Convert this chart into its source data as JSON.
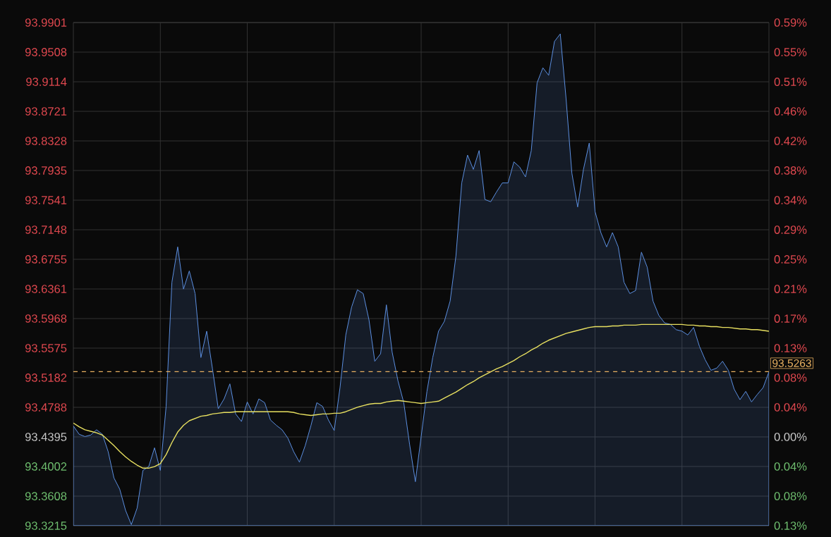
{
  "chart_data": {
    "type": "area",
    "categories": [
      null,
      null,
      null,
      null,
      null,
      null,
      null,
      null,
      null,
      null,
      null,
      null,
      null,
      null,
      null,
      null,
      null,
      null,
      null,
      null,
      null,
      null,
      null,
      null,
      null,
      null,
      null,
      null,
      null,
      null,
      null,
      null,
      null,
      null,
      null,
      null,
      null,
      null,
      null,
      null,
      null,
      null,
      null,
      null,
      null,
      null,
      null,
      null,
      null,
      null,
      null,
      null,
      null,
      null,
      null,
      null,
      null,
      null,
      null,
      null,
      null,
      null,
      null,
      null,
      null,
      null,
      null,
      null,
      null,
      null,
      null,
      null,
      null,
      null,
      null,
      null,
      null,
      null,
      null,
      null,
      null,
      null,
      null,
      null,
      null,
      null,
      null,
      null,
      null,
      null,
      null,
      null,
      null,
      null,
      null,
      null,
      null,
      null,
      null,
      null,
      null,
      null,
      null,
      null,
      null,
      null,
      null,
      null,
      null,
      null,
      null,
      null,
      null,
      null,
      null,
      null,
      null,
      null,
      null,
      null,
      null
    ],
    "ylim": [
      93.3215,
      93.9901
    ],
    "yticks": [
      93.9901,
      93.9508,
      93.9114,
      93.8721,
      93.8328,
      93.7935,
      93.7541,
      93.7148,
      93.6755,
      93.6361,
      93.5968,
      93.5575,
      93.5182,
      93.4788,
      93.4395,
      93.4002,
      93.3608,
      93.3215
    ],
    "y2lim": [
      -0.1263,
      0.5893
    ],
    "y2ticks": [
      {
        "value": 0.5893,
        "label": "0.59%"
      },
      {
        "value": 0.5472,
        "label": "0.55%"
      },
      {
        "value": 0.505,
        "label": "0.51%"
      },
      {
        "value": 0.463,
        "label": "0.46%"
      },
      {
        "value": 0.4209,
        "label": "0.42%"
      },
      {
        "value": 0.3789,
        "label": "0.38%"
      },
      {
        "value": 0.3367,
        "label": "0.34%"
      },
      {
        "value": 0.2946,
        "label": "0.29%"
      },
      {
        "value": 0.2526,
        "label": "0.25%"
      },
      {
        "value": 0.2104,
        "label": "0.21%"
      },
      {
        "value": 0.1683,
        "label": "0.17%"
      },
      {
        "value": 0.1263,
        "label": "0.13%"
      },
      {
        "value": 0.0842,
        "label": "0.08%"
      },
      {
        "value": 0.0421,
        "label": "0.04%"
      },
      {
        "value": 0,
        "label": "0.00%"
      },
      {
        "value": -0.0421,
        "label": "0.04%"
      },
      {
        "value": -0.0842,
        "label": "0.08%"
      },
      {
        "value": -0.1263,
        "label": "0.13%"
      }
    ],
    "tick_labels": "y",
    "grid": true,
    "series": [
      {
        "color": "#5b8fe0",
        "values": [
          93.454,
          93.443,
          93.44,
          93.442,
          93.449,
          93.443,
          93.42,
          93.385,
          93.37,
          93.342,
          93.323,
          93.345,
          93.395,
          93.4,
          93.425,
          93.395,
          93.48,
          93.645,
          93.692,
          93.636,
          93.66,
          93.63,
          93.545,
          93.58,
          93.53,
          93.477,
          93.49,
          93.51,
          93.47,
          93.46,
          93.486,
          93.47,
          93.49,
          93.485,
          93.462,
          93.455,
          93.449,
          93.438,
          93.42,
          93.406,
          93.428,
          93.455,
          93.485,
          93.48,
          93.462,
          93.448,
          93.505,
          93.575,
          93.612,
          93.635,
          93.63,
          93.595,
          93.54,
          93.55,
          93.615,
          93.552,
          93.514,
          93.485,
          93.43,
          93.38,
          93.44,
          93.5,
          93.545,
          93.58,
          93.593,
          93.62,
          93.68,
          93.777,
          93.814,
          93.795,
          93.82,
          93.755,
          93.752,
          93.765,
          93.777,
          93.777,
          93.805,
          93.798,
          93.785,
          93.82,
          93.91,
          93.93,
          93.92,
          93.965,
          93.975,
          93.889,
          93.79,
          93.745,
          93.795,
          93.83,
          93.739,
          93.711,
          93.692,
          93.711,
          93.692,
          93.645,
          93.63,
          93.634,
          93.685,
          93.665,
          93.62,
          93.601,
          93.591,
          93.589,
          93.582,
          93.58,
          93.575,
          93.585,
          93.56,
          93.542,
          93.528,
          93.531,
          93.54,
          93.528,
          93.503,
          93.489,
          93.5,
          93.486,
          93.496,
          93.505,
          93.526
        ]
      },
      {
        "type": "line",
        "color": "#e8e060",
        "values": [
          93.458,
          93.453,
          93.449,
          93.447,
          93.445,
          93.442,
          93.435,
          93.428,
          93.42,
          93.413,
          93.407,
          93.402,
          93.398,
          93.398,
          93.4,
          93.404,
          93.416,
          93.432,
          93.446,
          93.455,
          93.461,
          93.464,
          93.467,
          93.468,
          93.47,
          93.471,
          93.472,
          93.472,
          93.473,
          93.473,
          93.473,
          93.473,
          93.473,
          93.473,
          93.473,
          93.473,
          93.473,
          93.473,
          93.472,
          93.47,
          93.469,
          93.468,
          93.469,
          93.47,
          93.47,
          93.471,
          93.471,
          93.473,
          93.476,
          93.479,
          93.481,
          93.483,
          93.484,
          93.484,
          93.486,
          93.487,
          93.488,
          93.487,
          93.486,
          93.485,
          93.484,
          93.485,
          93.486,
          93.487,
          93.491,
          93.495,
          93.499,
          93.504,
          93.509,
          93.513,
          93.518,
          93.522,
          93.526,
          93.53,
          93.533,
          93.537,
          93.541,
          93.546,
          93.55,
          93.555,
          93.559,
          93.564,
          93.568,
          93.571,
          93.574,
          93.577,
          93.579,
          93.581,
          93.583,
          93.585,
          93.586,
          93.586,
          93.586,
          93.587,
          93.587,
          93.588,
          93.588,
          93.588,
          93.589,
          93.589,
          93.589,
          93.589,
          93.589,
          93.589,
          93.589,
          93.589,
          93.588,
          93.588,
          93.587,
          93.587,
          93.586,
          93.586,
          93.585,
          93.585,
          93.584,
          93.583,
          93.583,
          93.582,
          93.582,
          93.581,
          93.58
        ]
      }
    ],
    "ref_lines": [
      {
        "axis": "y",
        "value": 93.5263,
        "label": "93.5263",
        "color": "#e8b060",
        "line_style": "dashed"
      }
    ]
  }
}
